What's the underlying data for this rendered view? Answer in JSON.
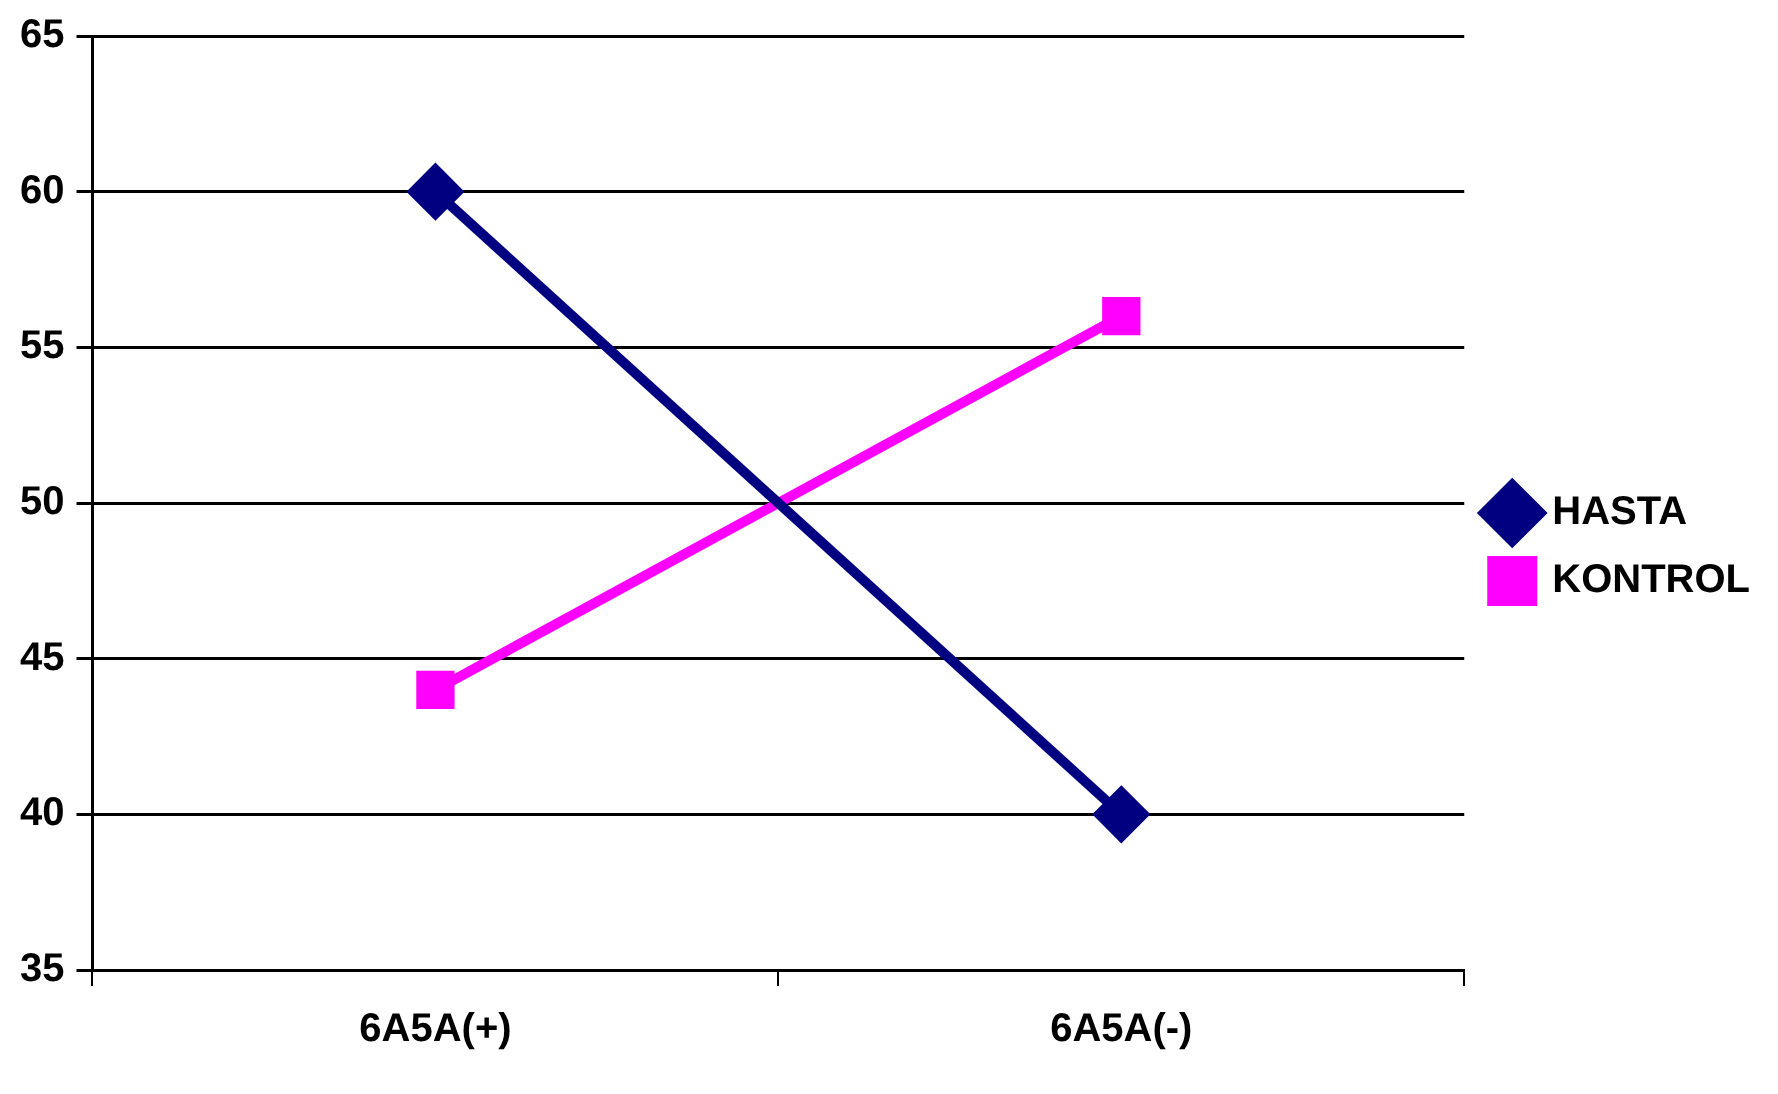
{
  "chart_data": {
    "type": "line",
    "categories": [
      "6A5A(+)",
      "6A5A(-)"
    ],
    "series": [
      {
        "name": "HASTA",
        "color": "#000080",
        "values": [
          60,
          40
        ],
        "marker": "diamond"
      },
      {
        "name": "KONTROL",
        "color": "#ff00ff",
        "values": [
          44,
          56
        ],
        "marker": "square"
      }
    ],
    "ylim": [
      35,
      65
    ],
    "yticks": [
      35,
      40,
      45,
      50,
      55,
      60,
      65
    ],
    "grid": "y",
    "legend": "right",
    "line_style": "solid"
  }
}
